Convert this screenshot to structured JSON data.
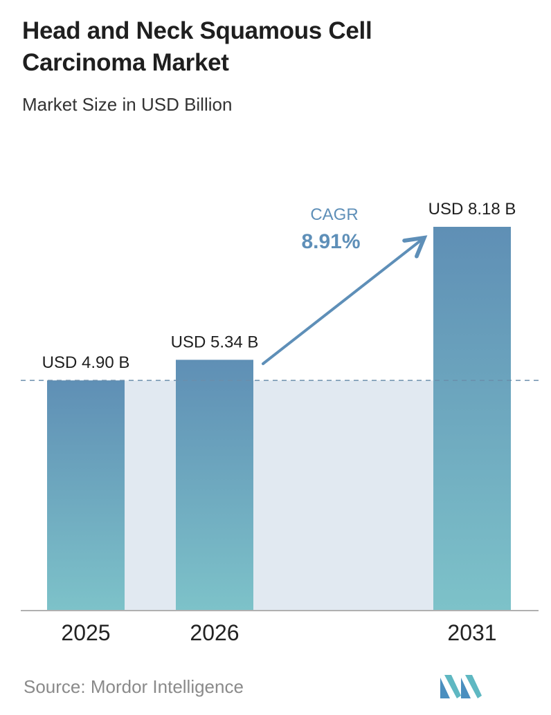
{
  "title_line1": "Head and Neck Squamous Cell",
  "title_line2": "Carcinoma Market",
  "subtitle": "Market Size in USD Billion",
  "source": "Source: Mordor Intelligence",
  "colors": {
    "bar_top": "#5f8fb5",
    "bar_bottom": "#7dc2c9",
    "band": "#e1e9f1",
    "accent": "#5e8fb8",
    "dash": "#6b8fac",
    "axis": "#b0b0b0"
  },
  "chart_data": {
    "type": "bar",
    "title": "Head and Neck Squamous Cell Carcinoma Market",
    "subtitle": "Market Size in USD Billion",
    "categories": [
      "2025",
      "2026",
      "2031"
    ],
    "values": [
      4.9,
      5.34,
      8.18
    ],
    "value_labels": [
      "USD 4.90 B",
      "USD 5.34 B",
      "USD 8.18 B"
    ],
    "ylim": [
      0,
      8.18
    ],
    "grid": false,
    "annotations": {
      "cagr_label": "CAGR",
      "cagr_value": "8.91%"
    }
  }
}
